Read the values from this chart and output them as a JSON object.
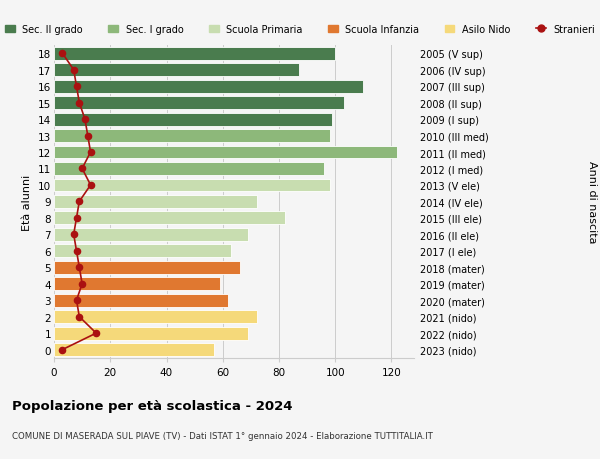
{
  "ages": [
    18,
    17,
    16,
    15,
    14,
    13,
    12,
    11,
    10,
    9,
    8,
    7,
    6,
    5,
    4,
    3,
    2,
    1,
    0
  ],
  "bar_values": [
    100,
    87,
    110,
    103,
    99,
    98,
    122,
    96,
    98,
    72,
    82,
    69,
    63,
    66,
    59,
    62,
    72,
    69,
    57
  ],
  "stranieri": [
    3,
    7,
    8,
    9,
    11,
    12,
    13,
    10,
    13,
    9,
    8,
    7,
    8,
    9,
    10,
    8,
    9,
    15,
    3
  ],
  "right_labels": [
    "2005 (V sup)",
    "2006 (IV sup)",
    "2007 (III sup)",
    "2008 (II sup)",
    "2009 (I sup)",
    "2010 (III med)",
    "2011 (II med)",
    "2012 (I med)",
    "2013 (V ele)",
    "2014 (IV ele)",
    "2015 (III ele)",
    "2016 (II ele)",
    "2017 (I ele)",
    "2018 (mater)",
    "2019 (mater)",
    "2020 (mater)",
    "2021 (nido)",
    "2022 (nido)",
    "2023 (nido)"
  ],
  "bar_colors": [
    "#4a7c4e",
    "#4a7c4e",
    "#4a7c4e",
    "#4a7c4e",
    "#4a7c4e",
    "#8db87a",
    "#8db87a",
    "#8db87a",
    "#c8ddb0",
    "#c8ddb0",
    "#c8ddb0",
    "#c8ddb0",
    "#c8ddb0",
    "#e07830",
    "#e07830",
    "#e07830",
    "#f5d97a",
    "#f5d97a",
    "#f5d97a"
  ],
  "legend_labels": [
    "Sec. II grado",
    "Sec. I grado",
    "Scuola Primaria",
    "Scuola Infanzia",
    "Asilo Nido",
    "Stranieri"
  ],
  "legend_colors": [
    "#4a7c4e",
    "#8db87a",
    "#c8ddb0",
    "#e07830",
    "#f5d97a",
    "#aa1111"
  ],
  "title": "Popolazione per età scolastica - 2024",
  "subtitle": "COMUNE DI MASERADA SUL PIAVE (TV) - Dati ISTAT 1° gennaio 2024 - Elaborazione TUTTITALIA.IT",
  "ylabel_left": "Età alunni",
  "ylabel_right": "Anni di nascita",
  "xlim": [
    0,
    128
  ],
  "xticks": [
    0,
    20,
    40,
    60,
    80,
    100,
    120
  ],
  "stranieri_color": "#aa1111",
  "background_color": "#f5f5f5",
  "grid_color": "#cccccc"
}
